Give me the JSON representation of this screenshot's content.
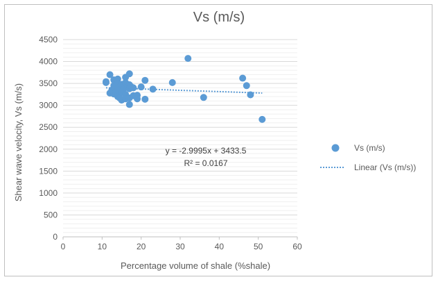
{
  "chart_data": {
    "type": "scatter",
    "title": "Vs (m/s)",
    "xlabel": "Percentage volume of shale (%shale)",
    "ylabel": "Shear wave velocity, Vs (m/s)",
    "xlim": [
      0,
      60
    ],
    "ylim": [
      0,
      4500
    ],
    "x_ticks": [
      "0",
      "10",
      "20",
      "30",
      "40",
      "50",
      "60"
    ],
    "y_ticks": [
      "0",
      "500",
      "1000",
      "1500",
      "2000",
      "2500",
      "3000",
      "3500",
      "4000",
      "4500"
    ],
    "grid": true,
    "legend": {
      "position": "right",
      "entries": [
        "Vs (m/s)",
        "Linear (Vs (m/s))"
      ]
    },
    "series": [
      {
        "name": "Vs (m/s)",
        "color": "#5b9bd5",
        "points": [
          [
            11,
            3540
          ],
          [
            11,
            3520
          ],
          [
            12,
            3700
          ],
          [
            12,
            3280
          ],
          [
            12.5,
            3350
          ],
          [
            13,
            3580
          ],
          [
            13,
            3450
          ],
          [
            13,
            3260
          ],
          [
            13.5,
            3400
          ],
          [
            13.5,
            3300
          ],
          [
            14,
            3600
          ],
          [
            14,
            3500
          ],
          [
            14,
            3350
          ],
          [
            14,
            3200
          ],
          [
            14.5,
            3170
          ],
          [
            14.5,
            3420
          ],
          [
            15,
            3480
          ],
          [
            15,
            3300
          ],
          [
            15,
            3120
          ],
          [
            15.5,
            3370
          ],
          [
            16,
            3640
          ],
          [
            16,
            3520
          ],
          [
            16,
            3250
          ],
          [
            16,
            3150
          ],
          [
            16.5,
            3450
          ],
          [
            17,
            3720
          ],
          [
            17,
            3470
          ],
          [
            17,
            3380
          ],
          [
            17,
            3170
          ],
          [
            17,
            3020
          ],
          [
            17.5,
            3420
          ],
          [
            18,
            3220
          ],
          [
            18,
            3400
          ],
          [
            19,
            3230
          ],
          [
            19,
            3150
          ],
          [
            20,
            3420
          ],
          [
            21,
            3570
          ],
          [
            21,
            3140
          ],
          [
            23,
            3370
          ],
          [
            28,
            3520
          ],
          [
            32,
            4070
          ],
          [
            36,
            3180
          ],
          [
            46,
            3620
          ],
          [
            47,
            3450
          ],
          [
            48,
            3240
          ],
          [
            51,
            2680
          ]
        ]
      }
    ],
    "trendline": {
      "name": "Linear (Vs (m/s))",
      "slope": -2.9995,
      "intercept": 3433.5,
      "x_range": [
        11,
        51
      ],
      "color": "#5b9bd5"
    },
    "annotations": {
      "equation": "y = -2.9995x + 3433.5",
      "r_squared": "R² = 0.0167"
    }
  }
}
